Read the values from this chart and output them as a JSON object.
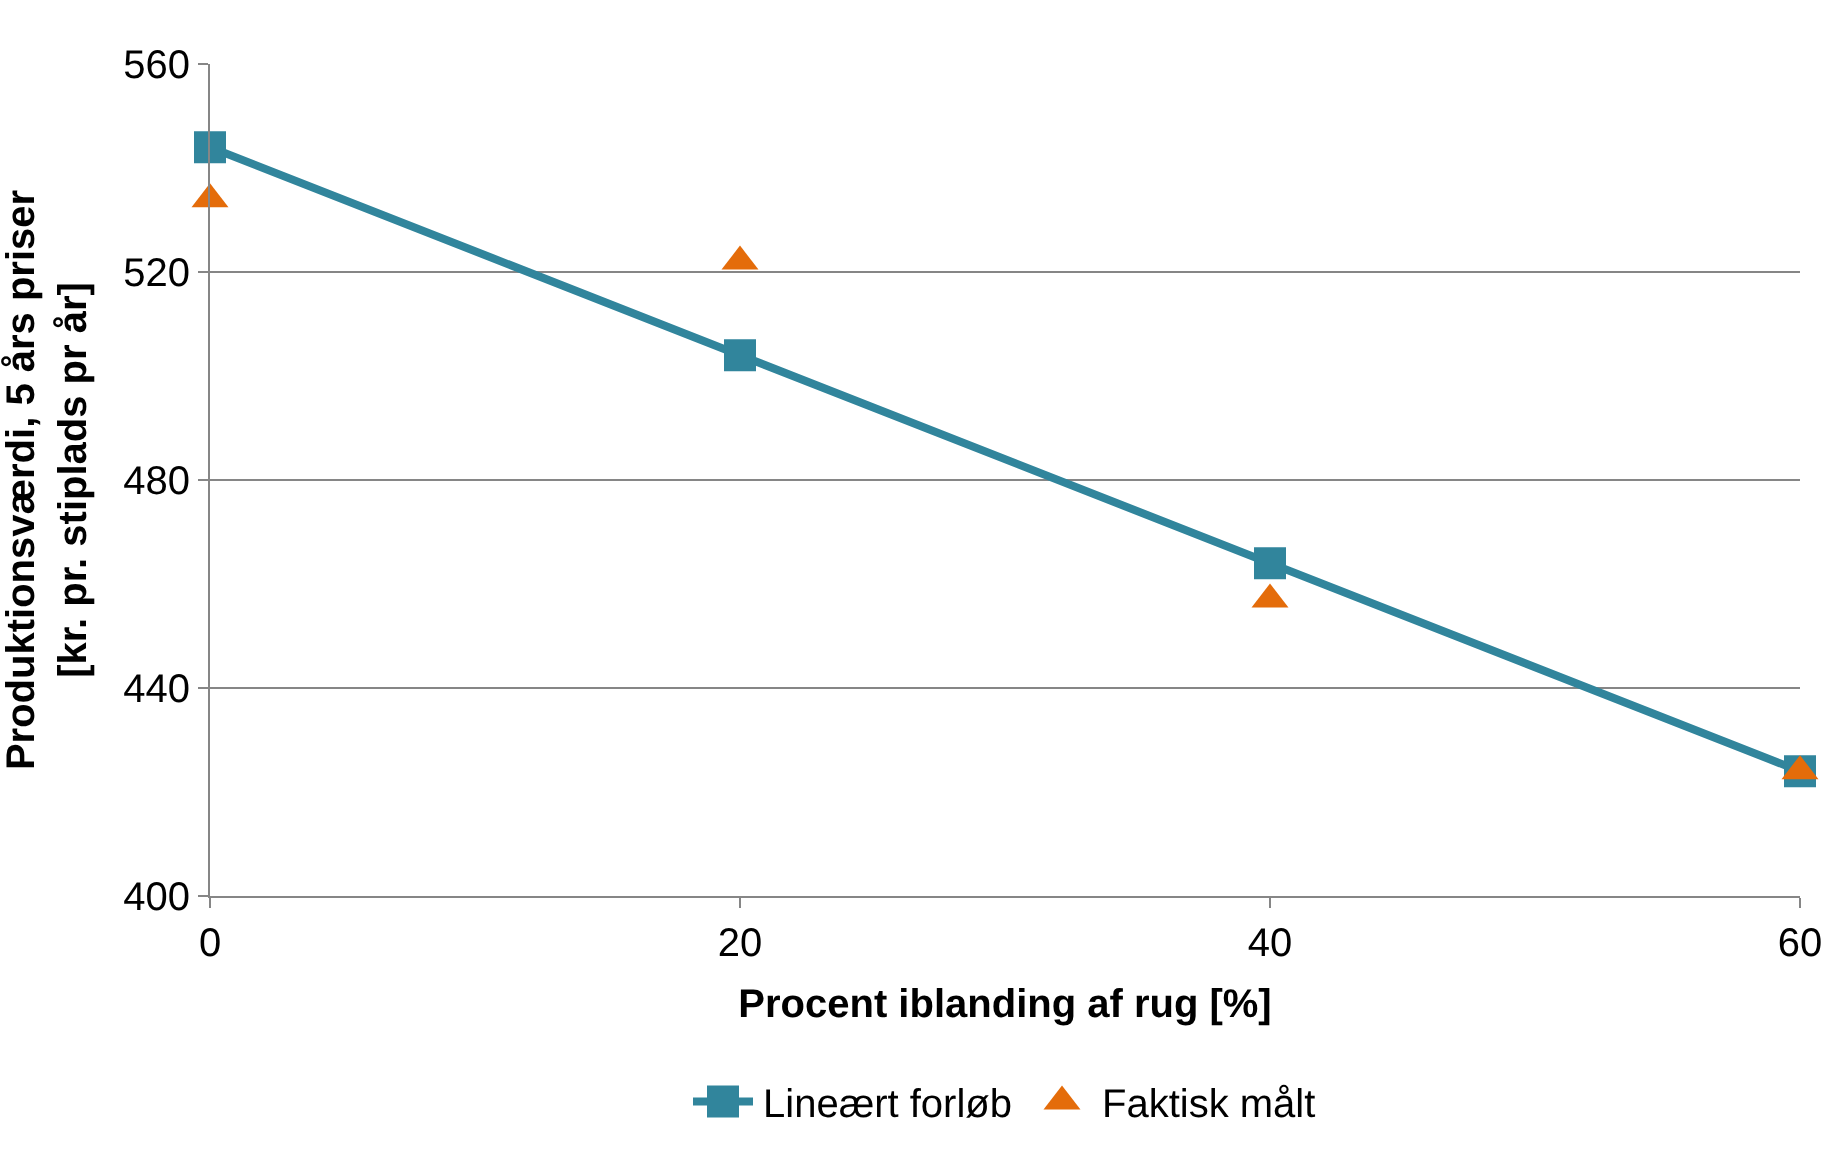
{
  "chart_data": {
    "type": "line",
    "xlabel": "Procent iblanding af rug [%]",
    "ylabel": "Produktionsværdi, 5 års priser\n[kr. pr. stiplads pr år]",
    "x": [
      0,
      20,
      40,
      60
    ],
    "series": [
      {
        "name": "Lineært forløb",
        "type": "line",
        "color": "#31859c",
        "marker": "square",
        "values": [
          544,
          504,
          464,
          424
        ]
      },
      {
        "name": "Faktisk målt",
        "type": "scatter",
        "color": "#e46c0a",
        "marker": "triangle",
        "values": [
          534,
          522,
          457,
          424
        ]
      }
    ],
    "xlim": [
      0,
      60
    ],
    "xticks": [
      0,
      20,
      40,
      60
    ],
    "ylim": [
      400,
      560
    ],
    "yticks": [
      400,
      440,
      480,
      520,
      560
    ],
    "grid": "y",
    "legend": "bottom"
  }
}
